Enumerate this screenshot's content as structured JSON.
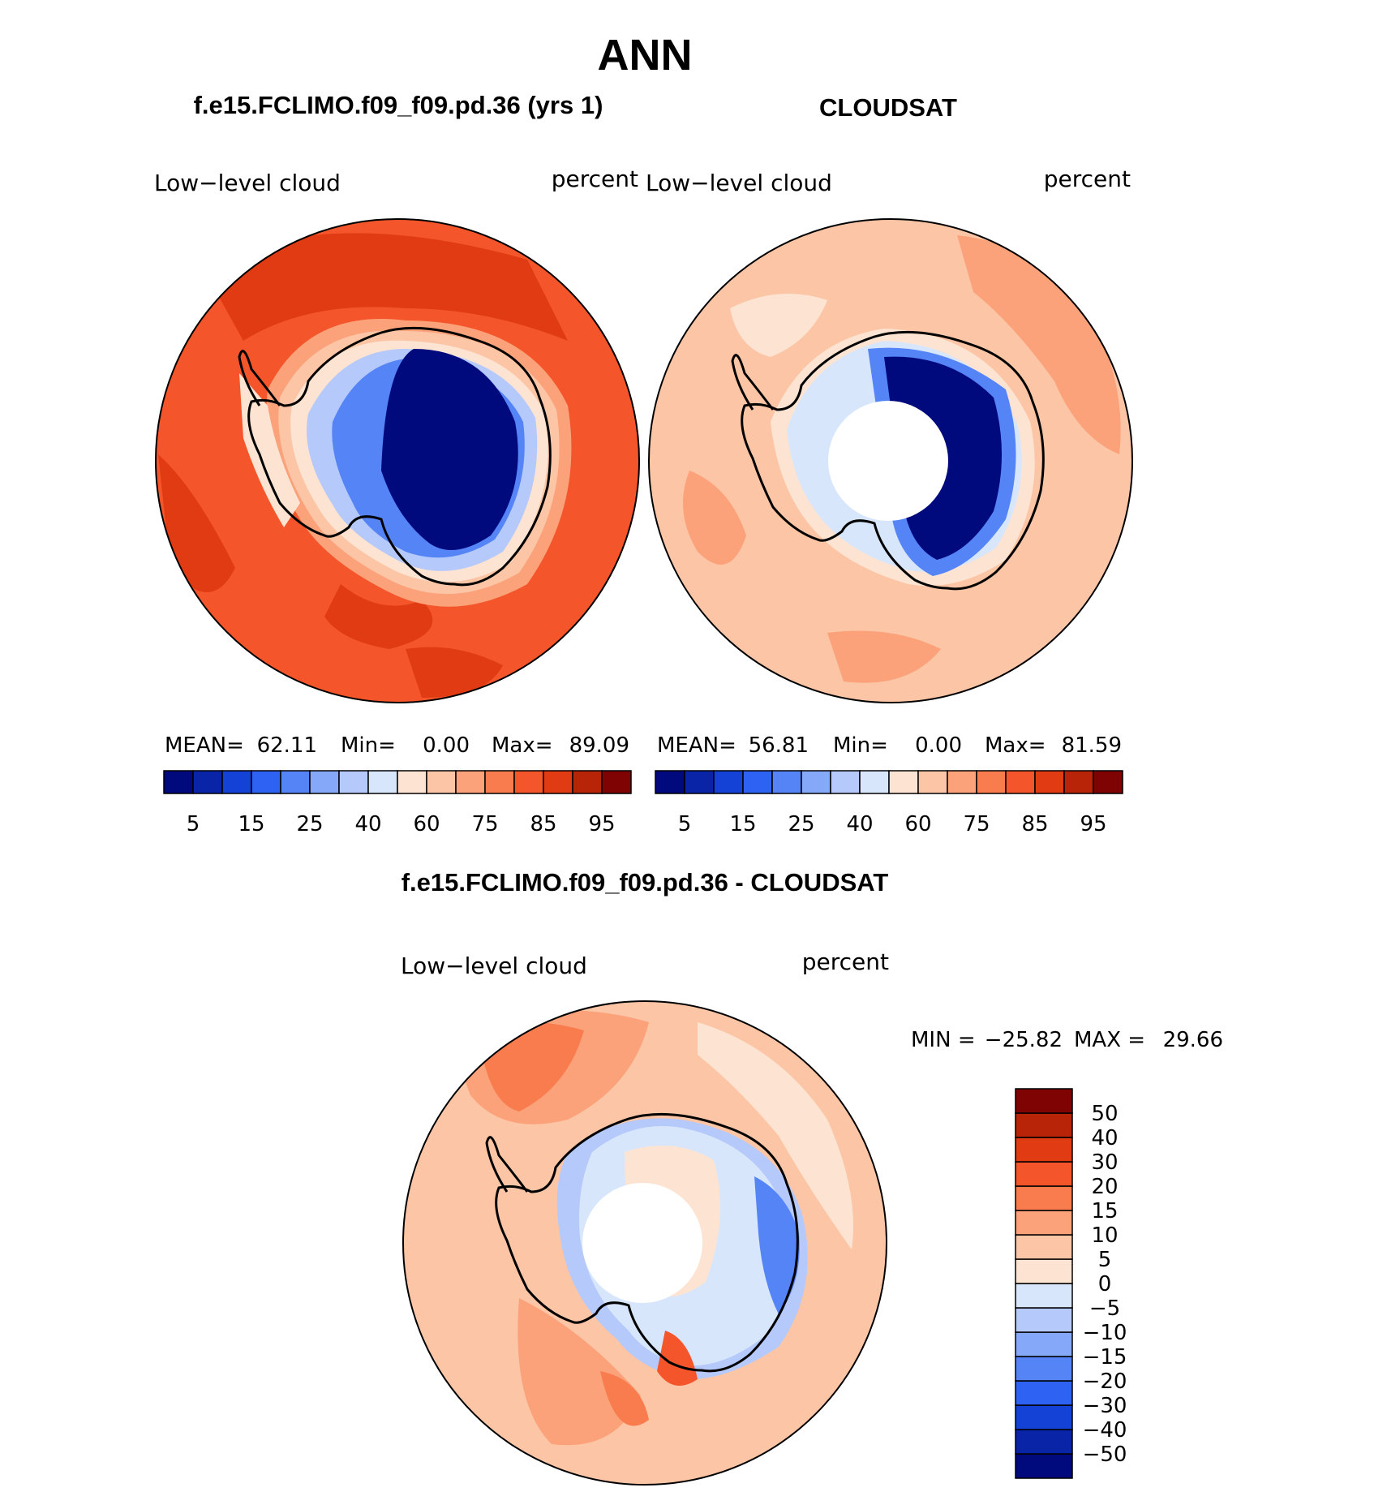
{
  "chart_data": {
    "type": "heatmap",
    "title": "ANN",
    "projection": "south polar stereographic",
    "panels": [
      {
        "id": "model",
        "title": "f.e15.FCLIMO.f09_f09.pd.36 (yrs 1)",
        "variable_label": "Low−level cloud",
        "units_label": "percent",
        "stats": {
          "mean_label": "MEAN=",
          "mean": "62.11",
          "min_label": "Min=",
          "min": "0.00",
          "max_label": "Max=",
          "max": "89.09"
        },
        "has_missing_center": false
      },
      {
        "id": "obs",
        "title": "CLOUDSAT",
        "variable_label": "Low−level cloud",
        "units_label": "percent",
        "stats": {
          "mean_label": "MEAN=",
          "mean": "56.81",
          "min_label": "Min=",
          "min": "0.00",
          "max_label": "Max=",
          "max": "81.59"
        },
        "has_missing_center": true
      },
      {
        "id": "diff",
        "title": "f.e15.FCLIMO.f09_f09.pd.36 - CLOUDSAT",
        "variable_label": "Low−level cloud",
        "units_label": "percent",
        "stats": {
          "min_label": "MIN =",
          "min": "−25.82",
          "max_label": "MAX =",
          "max": "29.66"
        },
        "has_missing_center": true
      }
    ],
    "abs_colorbar": {
      "levels": [
        5,
        10,
        15,
        20,
        25,
        30,
        40,
        50,
        60,
        70,
        75,
        80,
        85,
        90,
        95
      ],
      "tick_labels": [
        "5",
        "15",
        "25",
        "40",
        "60",
        "75",
        "85",
        "95"
      ],
      "colors": [
        "#000a7d",
        "#0a24a8",
        "#1441d6",
        "#2d62f2",
        "#5584f7",
        "#86a8f8",
        "#b5c9fa",
        "#d8e6fb",
        "#fde4d2",
        "#fcc6a6",
        "#fba27a",
        "#f97c4e",
        "#f4552a",
        "#e03b12",
        "#b82408",
        "#7f0303"
      ]
    },
    "diff_colorbar": {
      "levels": [
        -50,
        -40,
        -30,
        -20,
        -15,
        -10,
        -5,
        0,
        5,
        10,
        15,
        20,
        30,
        40,
        50
      ],
      "tick_labels": [
        "−50",
        "−40",
        "−30",
        "−20",
        "−15",
        "−10",
        "−5",
        "0",
        "5",
        "10",
        "15",
        "20",
        "30",
        "40",
        "50"
      ],
      "colors": [
        "#000a7d",
        "#0a24a8",
        "#1441d6",
        "#2d62f2",
        "#5584f7",
        "#86a8f8",
        "#b5c9fa",
        "#d8e6fb",
        "#fde4d2",
        "#fcc6a6",
        "#fba27a",
        "#f97c4e",
        "#f4552a",
        "#e03b12",
        "#b82408",
        "#7f0303"
      ]
    }
  }
}
